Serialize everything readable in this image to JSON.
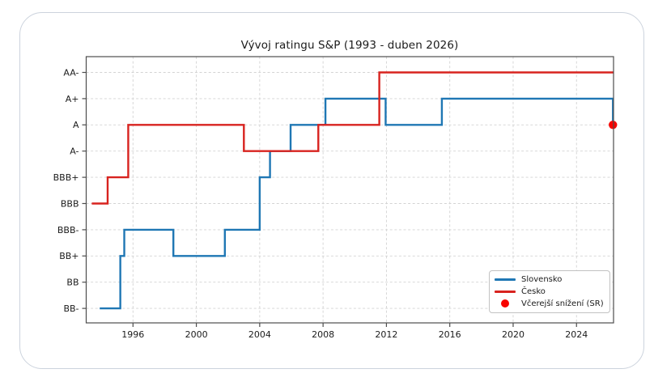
{
  "chart": {
    "title": "Vývoj ratingu S&P (1993 - duben 2026)",
    "y_tick_labels": [
      "AA-",
      "A+",
      "A",
      "A-",
      "BBB+",
      "BBB",
      "BBB-",
      "BB+",
      "BB",
      "BB-"
    ],
    "x_tick_labels": [
      "1996",
      "2000",
      "2004",
      "2008",
      "2012",
      "2016",
      "2020",
      "2024"
    ]
  },
  "legend": {
    "items": [
      {
        "label": "Slovensko",
        "swatch": "line",
        "color": "#1f77b4"
      },
      {
        "label": "Česko",
        "swatch": "line",
        "color": "#d8231f"
      },
      {
        "label": "Včerejší snížení (SR)",
        "swatch": "dot",
        "color": "#f80400"
      }
    ]
  },
  "colors": {
    "slovensko": "#1f77b4",
    "cesko": "#d8231f",
    "marker": "#f80400",
    "grid": "#d3d3d3",
    "spine": "#4d4d4d",
    "text": "#1b1b1b"
  },
  "chart_data": {
    "type": "line",
    "subtype": "step-post",
    "title": "Vývoj ratingu S&P (1993 - duben 2026)",
    "grid": true,
    "legend_position": "lower right",
    "x_axis": {
      "range": [
        1993.05,
        2026.45
      ],
      "ticks": [
        1996,
        2000,
        2004,
        2008,
        2012,
        2016,
        2020,
        2024
      ]
    },
    "y_axis": {
      "categories_bottom_to_top": [
        "BB-",
        "BB",
        "BB+",
        "BBB-",
        "BBB",
        "BBB+",
        "A-",
        "A",
        "A+",
        "AA-"
      ]
    },
    "series": [
      {
        "name": "Slovensko",
        "color": "#1f77b4",
        "end_year": 2026.3,
        "steps": [
          [
            1993.9,
            "BB-"
          ],
          [
            1995.2,
            "BB+"
          ],
          [
            1995.45,
            "BBB-"
          ],
          [
            1998.55,
            "BB+"
          ],
          [
            2001.8,
            "BBB-"
          ],
          [
            2004.0,
            "BBB+"
          ],
          [
            2004.65,
            "A-"
          ],
          [
            2005.95,
            "A"
          ],
          [
            2008.15,
            "A+"
          ],
          [
            2011.95,
            "A"
          ],
          [
            2015.5,
            "A+"
          ],
          [
            2026.3,
            "A"
          ]
        ]
      },
      {
        "name": "Česko",
        "color": "#d8231f",
        "end_year": 2026.45,
        "steps": [
          [
            1993.4,
            "BBB"
          ],
          [
            1994.4,
            "BBB+"
          ],
          [
            1995.7,
            "A"
          ],
          [
            2003.0,
            "A-"
          ],
          [
            2007.7,
            "A"
          ],
          [
            2011.55,
            "AA-"
          ]
        ]
      }
    ],
    "marker": {
      "label": "Včerejší snížení (SR)",
      "x": 2026.3,
      "y": "A",
      "color": "#f80400"
    }
  }
}
